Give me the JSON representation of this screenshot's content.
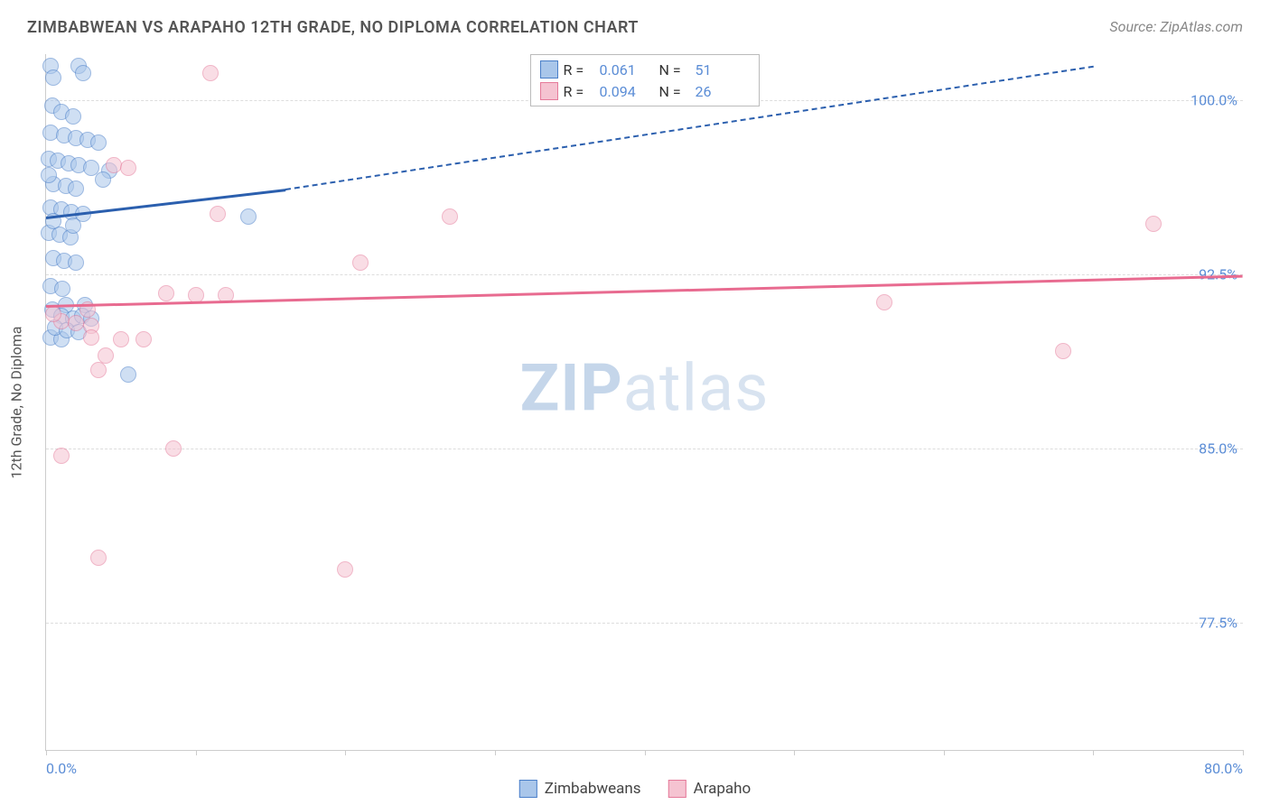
{
  "title": "ZIMBABWEAN VS ARAPAHO 12TH GRADE, NO DIPLOMA CORRELATION CHART",
  "source": "Source: ZipAtlas.com",
  "watermark": {
    "part1": "ZIP",
    "part2": "atlas"
  },
  "yaxis_title": "12th Grade, No Diploma",
  "chart": {
    "type": "scatter",
    "background_color": "#ffffff",
    "grid_color": "#dddddd",
    "axis_color": "#cccccc",
    "text_color_axis": "#5b8dd6",
    "xlim": [
      0,
      80
    ],
    "ylim": [
      72,
      102
    ],
    "xticks": [
      0,
      10,
      20,
      30,
      40,
      50,
      60,
      70,
      80
    ],
    "xtick_labels": {
      "min": "0.0%",
      "max": "80.0%"
    },
    "yticks": [
      77.5,
      85.0,
      92.5,
      100.0
    ],
    "ytick_labels": [
      "77.5%",
      "85.0%",
      "92.5%",
      "100.0%"
    ],
    "marker_radius": 9,
    "marker_opacity": 0.55,
    "line_width_solid": 3,
    "line_width_dashed": 2,
    "series": [
      {
        "key": "zimbabweans",
        "label": "Zimbabweans",
        "R": "0.061",
        "N": "51",
        "fill": "#a9c6ea",
        "stroke": "#4a7fc9",
        "trend_color": "#2b5fae",
        "trend_solid": {
          "x1": 0,
          "y1": 95.0,
          "x2": 16,
          "y2": 96.2
        },
        "trend_dashed": {
          "x1": 16,
          "y1": 96.2,
          "x2": 70,
          "y2": 101.5
        },
        "points": [
          [
            0.3,
            101.5
          ],
          [
            0.5,
            101.0
          ],
          [
            2.2,
            101.5
          ],
          [
            2.5,
            101.2
          ],
          [
            0.4,
            99.8
          ],
          [
            1.0,
            99.5
          ],
          [
            1.8,
            99.3
          ],
          [
            0.3,
            98.6
          ],
          [
            1.2,
            98.5
          ],
          [
            2.0,
            98.4
          ],
          [
            2.8,
            98.3
          ],
          [
            3.5,
            98.2
          ],
          [
            0.2,
            97.5
          ],
          [
            0.8,
            97.4
          ],
          [
            1.5,
            97.3
          ],
          [
            2.2,
            97.2
          ],
          [
            3.0,
            97.1
          ],
          [
            4.2,
            97.0
          ],
          [
            0.5,
            96.4
          ],
          [
            1.3,
            96.3
          ],
          [
            2.0,
            96.2
          ],
          [
            0.3,
            95.4
          ],
          [
            1.0,
            95.3
          ],
          [
            1.7,
            95.2
          ],
          [
            2.5,
            95.1
          ],
          [
            0.2,
            94.3
          ],
          [
            0.9,
            94.2
          ],
          [
            1.6,
            94.1
          ],
          [
            0.5,
            93.2
          ],
          [
            1.2,
            93.1
          ],
          [
            2.0,
            93.0
          ],
          [
            0.3,
            92.0
          ],
          [
            1.1,
            91.9
          ],
          [
            0.4,
            91.0
          ],
          [
            1.3,
            91.2
          ],
          [
            2.6,
            91.2
          ],
          [
            1.0,
            90.7
          ],
          [
            1.8,
            90.6
          ],
          [
            2.4,
            90.7
          ],
          [
            3.0,
            90.6
          ],
          [
            13.5,
            95.0
          ],
          [
            5.5,
            88.2
          ],
          [
            0.3,
            89.8
          ],
          [
            1.0,
            89.7
          ],
          [
            0.5,
            94.8
          ],
          [
            1.8,
            94.6
          ],
          [
            0.2,
            96.8
          ],
          [
            3.8,
            96.6
          ],
          [
            0.6,
            90.2
          ],
          [
            1.4,
            90.1
          ],
          [
            2.2,
            90.0
          ]
        ]
      },
      {
        "key": "arapaho",
        "label": "Arapaho",
        "R": "0.094",
        "N": "26",
        "fill": "#f5c3d1",
        "stroke": "#e57a9a",
        "trend_color": "#e86b90",
        "trend_solid": {
          "x1": 0,
          "y1": 91.2,
          "x2": 80,
          "y2": 92.5
        },
        "trend_dashed": null,
        "points": [
          [
            11.0,
            101.2
          ],
          [
            4.5,
            97.2
          ],
          [
            5.5,
            97.1
          ],
          [
            11.5,
            95.1
          ],
          [
            27.0,
            95.0
          ],
          [
            21.0,
            93.0
          ],
          [
            8.0,
            91.7
          ],
          [
            10.0,
            91.6
          ],
          [
            12.0,
            91.6
          ],
          [
            2.8,
            91.0
          ],
          [
            56.0,
            91.3
          ],
          [
            1.0,
            90.5
          ],
          [
            2.0,
            90.4
          ],
          [
            3.0,
            90.3
          ],
          [
            3.0,
            89.8
          ],
          [
            5.0,
            89.7
          ],
          [
            6.5,
            89.7
          ],
          [
            4.0,
            89.0
          ],
          [
            68.0,
            89.2
          ],
          [
            3.5,
            88.4
          ],
          [
            1.0,
            84.7
          ],
          [
            8.5,
            85.0
          ],
          [
            3.5,
            80.3
          ],
          [
            20.0,
            79.8
          ],
          [
            74.0,
            94.7
          ],
          [
            0.5,
            90.8
          ]
        ]
      }
    ],
    "legend_top": {
      "R_label": "R  =",
      "N_label": "N  ="
    },
    "legend_bottom_labels": [
      "Zimbabweans",
      "Arapaho"
    ]
  }
}
